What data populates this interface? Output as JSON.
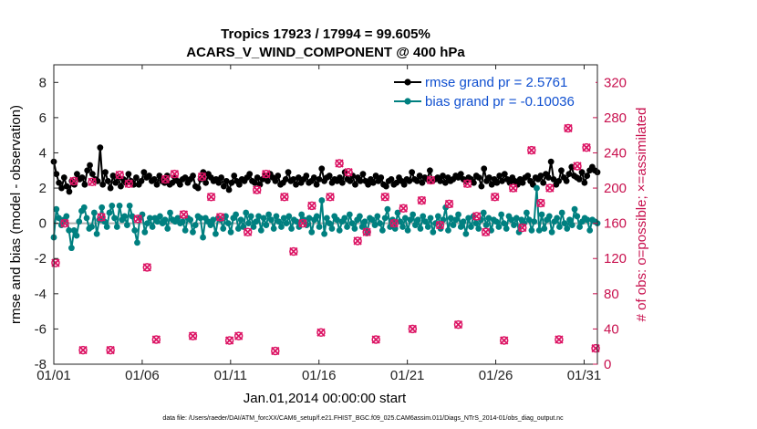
{
  "chart_data": {
    "type": "line",
    "title": "Tropics 17923 / 17994 = 99.605%",
    "subtitle": "ACARS_V_WIND_COMPONENT @ 400 hPa",
    "xlabel": "Jan.01,2014 00:00:00 start",
    "ylabel": "rmse and bias (model - observation)",
    "y2label": "# of obs: o=possible; ×=assimilated",
    "xlim": [
      1,
      31.75
    ],
    "ylim": [
      -8,
      9
    ],
    "y2lim": [
      0,
      340
    ],
    "xtick_values": [
      1,
      6,
      11,
      16,
      21,
      26,
      31
    ],
    "xtick_labels": [
      "01/01",
      "01/06",
      "01/11",
      "01/16",
      "01/21",
      "01/26",
      "01/31"
    ],
    "ytick_values": [
      -8,
      -6,
      -4,
      -2,
      0,
      2,
      4,
      6,
      8
    ],
    "ytick_labels": [
      "-8",
      "-6",
      "-4",
      "-2",
      "0",
      "2",
      "4",
      "6",
      "8"
    ],
    "y2tick_values": [
      0,
      40,
      80,
      120,
      160,
      200,
      240,
      280,
      320
    ],
    "y2tick_labels": [
      "0",
      "40",
      "80",
      "120",
      "160",
      "200",
      "240",
      "280",
      "320"
    ],
    "legend_position": "top-right",
    "series": [
      {
        "name": "rmse grand pr = 2.5761",
        "axis": "left",
        "color": "#000000",
        "values": [
          3.5,
          2.8,
          2.3,
          2.0,
          2.6,
          2.1,
          1.8,
          2.4,
          2.2,
          2.8,
          2.5,
          2.6,
          2.2,
          3.0,
          3.3,
          2.8,
          2.5,
          2.4,
          4.3,
          2.2,
          2.9,
          2.4,
          2.0,
          2.7,
          2.3,
          2.6,
          2.1,
          2.5,
          2.3,
          2.8,
          2.4,
          2.2,
          2.6,
          2.2,
          2.4,
          2.9,
          2.6,
          2.7,
          2.4,
          2.5,
          2.2,
          2.7,
          2.4,
          2.3,
          2.7,
          2.2,
          2.3,
          2.6,
          2.4,
          2.2,
          2.5,
          2.6,
          2.3,
          2.5,
          2.7,
          2.1,
          2.0,
          2.5,
          2.9,
          2.3,
          2.8,
          2.6,
          2.4,
          2.5,
          2.3,
          2.6,
          2.1,
          2.4,
          1.9,
          2.3,
          2.7,
          2.4,
          2.2,
          2.5,
          2.4,
          2.6,
          2.8,
          2.4,
          2.3,
          2.6,
          2.2,
          2.5,
          2.7,
          2.4,
          2.8,
          2.6,
          2.4,
          2.7,
          2.2,
          2.3,
          2.5,
          2.9,
          2.4,
          2.5,
          2.2,
          2.6,
          2.3,
          2.5,
          2.7,
          2.3,
          2.4,
          2.6,
          2.2,
          2.5,
          3.1,
          2.4,
          2.6,
          2.7,
          2.3,
          2.5,
          2.4,
          2.6,
          2.3,
          2.9,
          2.5,
          2.4,
          2.7,
          2.2,
          2.6,
          2.4,
          2.8,
          2.4,
          2.2,
          2.5,
          2.3,
          2.7,
          2.4,
          2.6,
          2.2,
          2.1,
          2.4,
          2.5,
          2.2,
          2.3,
          2.6,
          2.4,
          2.2,
          2.5,
          2.4,
          2.9,
          2.5,
          2.4,
          2.7,
          2.3,
          2.6,
          2.5,
          3.0,
          2.4,
          2.5,
          2.6,
          2.4,
          2.7,
          2.3,
          2.6,
          2.4,
          2.5,
          2.7,
          2.6,
          2.8,
          2.5,
          2.4,
          2.6,
          2.5,
          2.3,
          2.7,
          2.6,
          2.1,
          3.1,
          2.4,
          2.6,
          2.2,
          2.5,
          2.3,
          2.7,
          2.4,
          2.8,
          2.5,
          2.3,
          2.6,
          2.4,
          2.2,
          2.5,
          2.3,
          2.6,
          2.7,
          2.4,
          2.2,
          2.6,
          2.5,
          2.7,
          2.3,
          2.8,
          2.6,
          3.5,
          2.5,
          2.2,
          2.4,
          3.0,
          2.6,
          2.4,
          2.8,
          3.2,
          2.7,
          2.6,
          2.5,
          2.9,
          2.3,
          2.7,
          3.0,
          3.2,
          3.0,
          2.9
        ]
      },
      {
        "name": "bias grand pr = -0.10036",
        "axis": "left",
        "color": "#008080",
        "values": [
          -0.8,
          0.8,
          0.3,
          -0.1,
          0.2,
          0.4,
          -0.4,
          -1.4,
          -0.4,
          -0.7,
          0.1,
          0.7,
          0.9,
          0.3,
          -0.3,
          -0.2,
          0.6,
          -0.6,
          0.2,
          0.9,
          0.1,
          -0.2,
          0.6,
          1.0,
          0.3,
          -0.2,
          1.0,
          0.2,
          0.4,
          -0.1,
          1.0,
          0.4,
          -0.4,
          -1.1,
          0.3,
          0.5,
          -0.5,
          0.0,
          0.3,
          -0.2,
          0.3,
          0.1,
          0.4,
          0.0,
          0.2,
          -0.3,
          0.6,
          0.2,
          0.1,
          0.3,
          0.0,
          0.1,
          -0.4,
          0.3,
          0.2,
          -0.5,
          -0.1,
          0.4,
          0.3,
          -0.8,
          0.3,
          0.1,
          -0.1,
          0.2,
          -0.6,
          0.3,
          0.2,
          -0.3,
          0.4,
          0.0,
          -0.5,
          0.3,
          0.5,
          -0.3,
          0.2,
          -0.2,
          0.6,
          0.0,
          0.4,
          -0.2,
          0.1,
          0.4,
          -0.4,
          0.3,
          -0.1,
          0.5,
          0.2,
          -0.3,
          0.4,
          0.1,
          -0.2,
          0.3,
          0.0,
          0.4,
          -0.3,
          0.2,
          0.1,
          -0.2,
          0.5,
          0.2,
          -0.1,
          0.3,
          -0.5,
          0.2,
          0.4,
          -0.2,
          1.3,
          -0.6,
          0.3,
          0.0,
          -0.3,
          0.4,
          0.2,
          -0.4,
          0.1,
          0.3,
          -0.2,
          0.5,
          0.0,
          -0.3,
          0.2,
          0.4,
          -0.2,
          0.1,
          -0.5,
          0.3,
          0.2,
          -0.1,
          0.4,
          0.0,
          -0.4,
          0.3,
          0.8,
          -0.2,
          0.2,
          -0.3,
          0.6,
          0.1,
          -0.2,
          0.3,
          -0.4,
          0.2,
          0.5,
          -0.1,
          0.2,
          -0.3,
          0.4,
          0.1,
          -0.2,
          0.3,
          -0.5,
          0.0,
          0.4,
          -0.3,
          0.2,
          0.9,
          -0.4,
          0.3,
          -0.1,
          0.2,
          0.5,
          -0.2,
          0.1,
          -0.6,
          0.3,
          -0.2,
          0.4,
          0.0,
          -0.3,
          0.2,
          0.6,
          -0.1,
          0.3,
          -0.4,
          0.2,
          0.1,
          -0.2,
          0.5,
          0.0,
          -0.3,
          0.4,
          0.2,
          -0.1,
          0.3,
          -0.5,
          0.2,
          0.0,
          0.6,
          0.2,
          -0.4,
          0.1,
          2.0,
          -0.4,
          0.5,
          -0.3,
          0.2,
          0.4,
          -0.5,
          0.1,
          0.3,
          -0.2,
          0.6,
          0.0,
          -0.3,
          0.2,
          -0.1,
          0.8,
          0.4,
          -0.2,
          0.1,
          0.3,
          0.2,
          -0.4,
          0.2,
          0.1,
          0.0
        ]
      },
      {
        "name": "possible obs (o)",
        "axis": "right",
        "color": "#dc1464",
        "values": [
          115,
          160,
          208,
          16,
          207,
          167,
          16,
          215,
          205,
          165,
          110,
          28,
          210,
          216,
          170,
          32,
          213,
          190,
          167,
          27,
          32,
          150,
          198,
          216,
          15,
          190,
          128,
          160,
          180,
          36,
          190,
          228,
          218,
          140,
          150,
          28,
          190,
          160,
          177,
          40,
          186,
          209,
          158,
          182,
          45,
          205,
          168,
          150,
          190,
          27,
          200,
          155,
          243,
          183,
          200,
          28,
          268,
          225,
          246,
          18
        ]
      },
      {
        "name": "assimilated obs (×)",
        "axis": "right",
        "color": "#dc1464",
        "values": [
          115,
          160,
          208,
          16,
          207,
          167,
          16,
          215,
          205,
          165,
          110,
          28,
          210,
          216,
          170,
          32,
          213,
          190,
          167,
          27,
          32,
          150,
          198,
          216,
          15,
          190,
          128,
          160,
          180,
          36,
          190,
          228,
          218,
          140,
          150,
          28,
          190,
          160,
          177,
          40,
          186,
          209,
          158,
          182,
          45,
          205,
          168,
          150,
          190,
          27,
          200,
          155,
          243,
          183,
          200,
          28,
          268,
          225,
          246,
          18
        ]
      }
    ]
  },
  "footer": "data file: /Users/raeder/DAI/ATM_forcXX/CAM6_setup/f.e21.FHIST_BGC.f09_025.CAM6assim.011/Diags_NTrS_2014-01/obs_diag_output.nc"
}
